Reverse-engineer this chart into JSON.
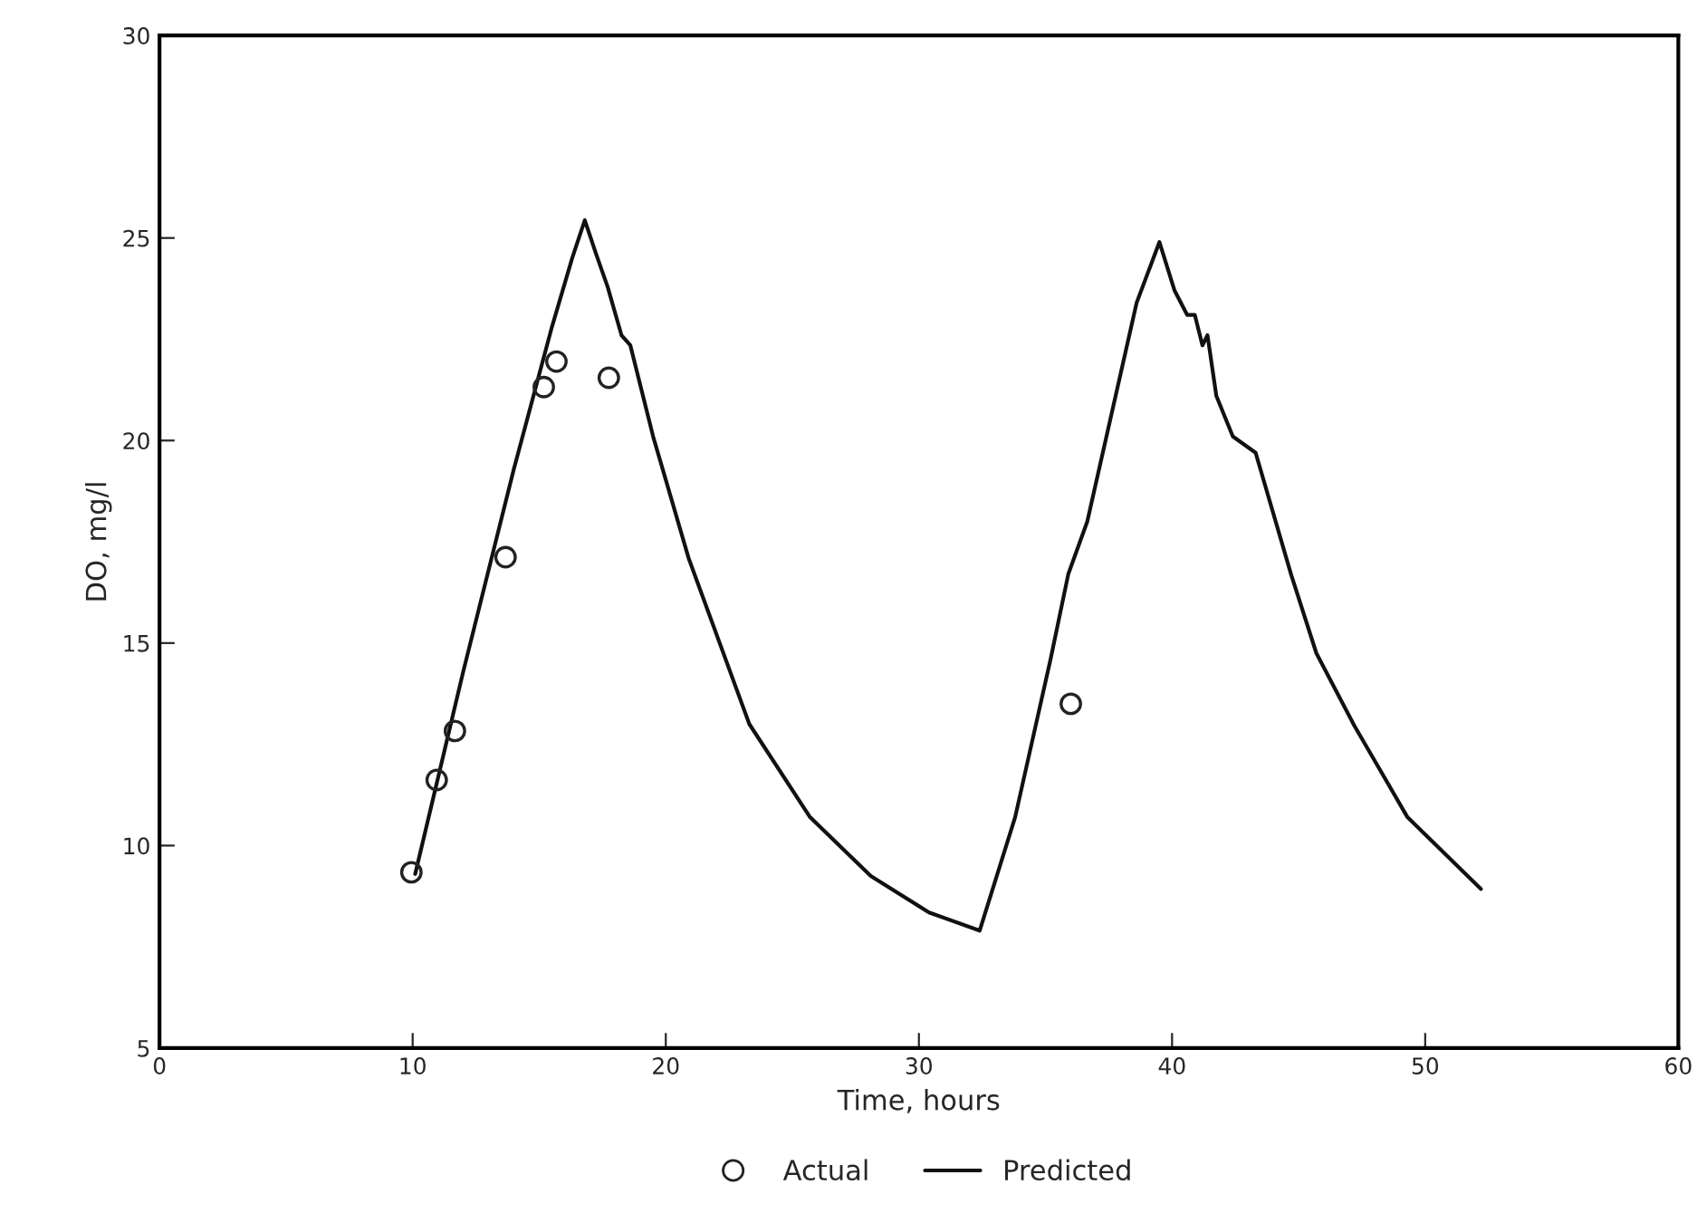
{
  "chart_data": {
    "type": "scatter",
    "xlabel": "Time, hours",
    "ylabel": "DO, mg/l",
    "xlim": [
      0,
      60
    ],
    "ylim": [
      5,
      30
    ],
    "xticks": [
      0,
      10,
      20,
      30,
      40,
      50,
      60
    ],
    "yticks": [
      5,
      10,
      15,
      20,
      25,
      30
    ],
    "grid": false,
    "legend": "bottom",
    "series": [
      {
        "name": "Actual",
        "marker": "circle",
        "color": "#222222",
        "x": [
          9.95,
          10.95,
          11.67,
          13.67,
          15.18,
          15.68,
          17.75,
          36.0
        ],
        "values": [
          9.34,
          11.62,
          12.83,
          17.12,
          21.32,
          21.95,
          21.55,
          13.5
        ]
      },
      {
        "name": "Predicted",
        "type": "line",
        "marker": "none",
        "color": "#111111",
        "x": [
          10.1,
          12.0,
          14.0,
          15.5,
          16.3,
          16.8,
          17.25,
          17.7,
          18.25,
          18.6,
          19.5,
          20.9,
          23.3,
          25.7,
          28.1,
          30.4,
          32.4,
          33.8,
          35.2,
          35.9,
          36.65,
          38.6,
          39.5,
          40.1,
          40.6,
          40.9,
          41.2,
          41.4,
          41.75,
          42.4,
          43.3,
          44.7,
          45.7,
          47.2,
          49.3,
          52.2
        ],
        "values": [
          9.3,
          14.3,
          19.3,
          22.8,
          24.5,
          25.44,
          24.6,
          23.8,
          22.6,
          22.35,
          20.1,
          17.1,
          13.0,
          10.7,
          9.25,
          8.35,
          7.9,
          10.7,
          14.6,
          16.7,
          18.0,
          23.4,
          24.9,
          23.7,
          23.1,
          23.1,
          22.35,
          22.6,
          21.1,
          20.1,
          19.7,
          16.7,
          14.75,
          12.96,
          10.7,
          8.93
        ]
      }
    ]
  }
}
